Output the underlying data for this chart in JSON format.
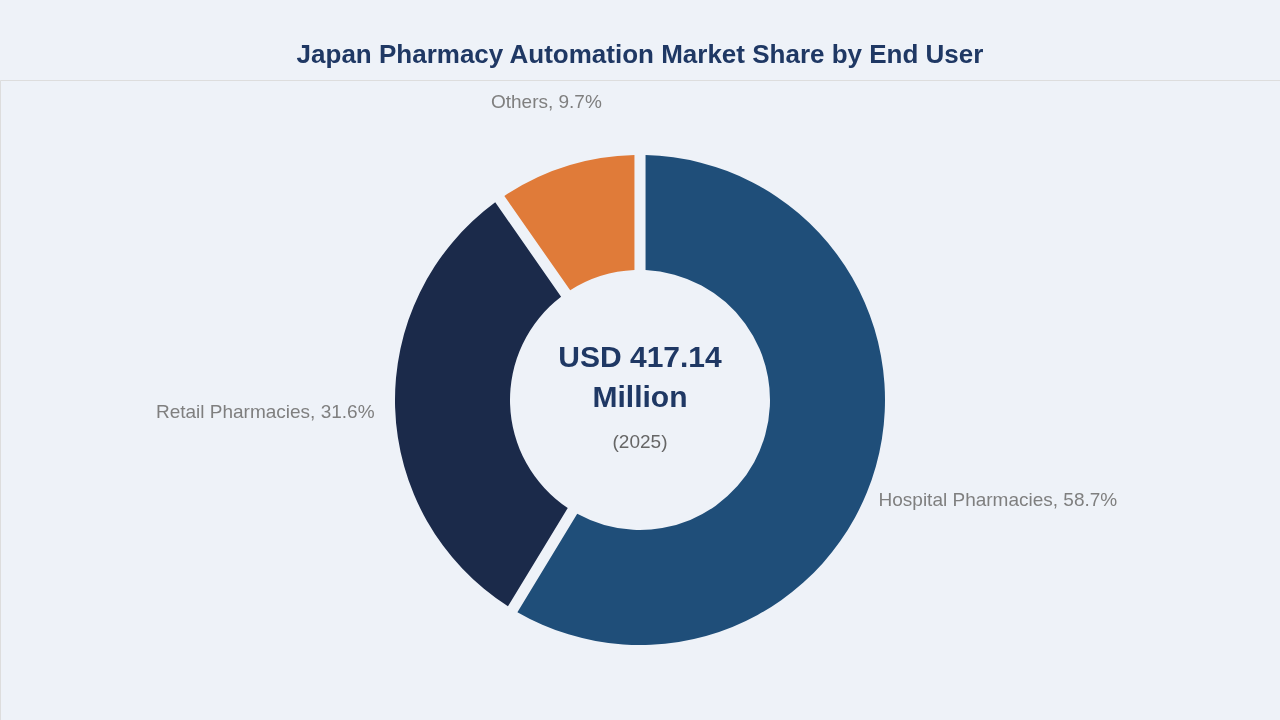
{
  "chart_data": {
    "type": "donut",
    "title": "Japan Pharmacy Automation Market Share by End User",
    "categories": [
      "Hospital Pharmacies",
      "Retail Pharmacies",
      "Others"
    ],
    "values": [
      58.7,
      31.6,
      9.7
    ],
    "colors": [
      "#1f4e79",
      "#1b2a4a",
      "#e07b39"
    ],
    "value_labels": [
      "58.7%",
      "31.6%",
      "9.7%"
    ],
    "annotations": [
      "USD 417.14",
      "Million",
      "(2025)"
    ]
  }
}
